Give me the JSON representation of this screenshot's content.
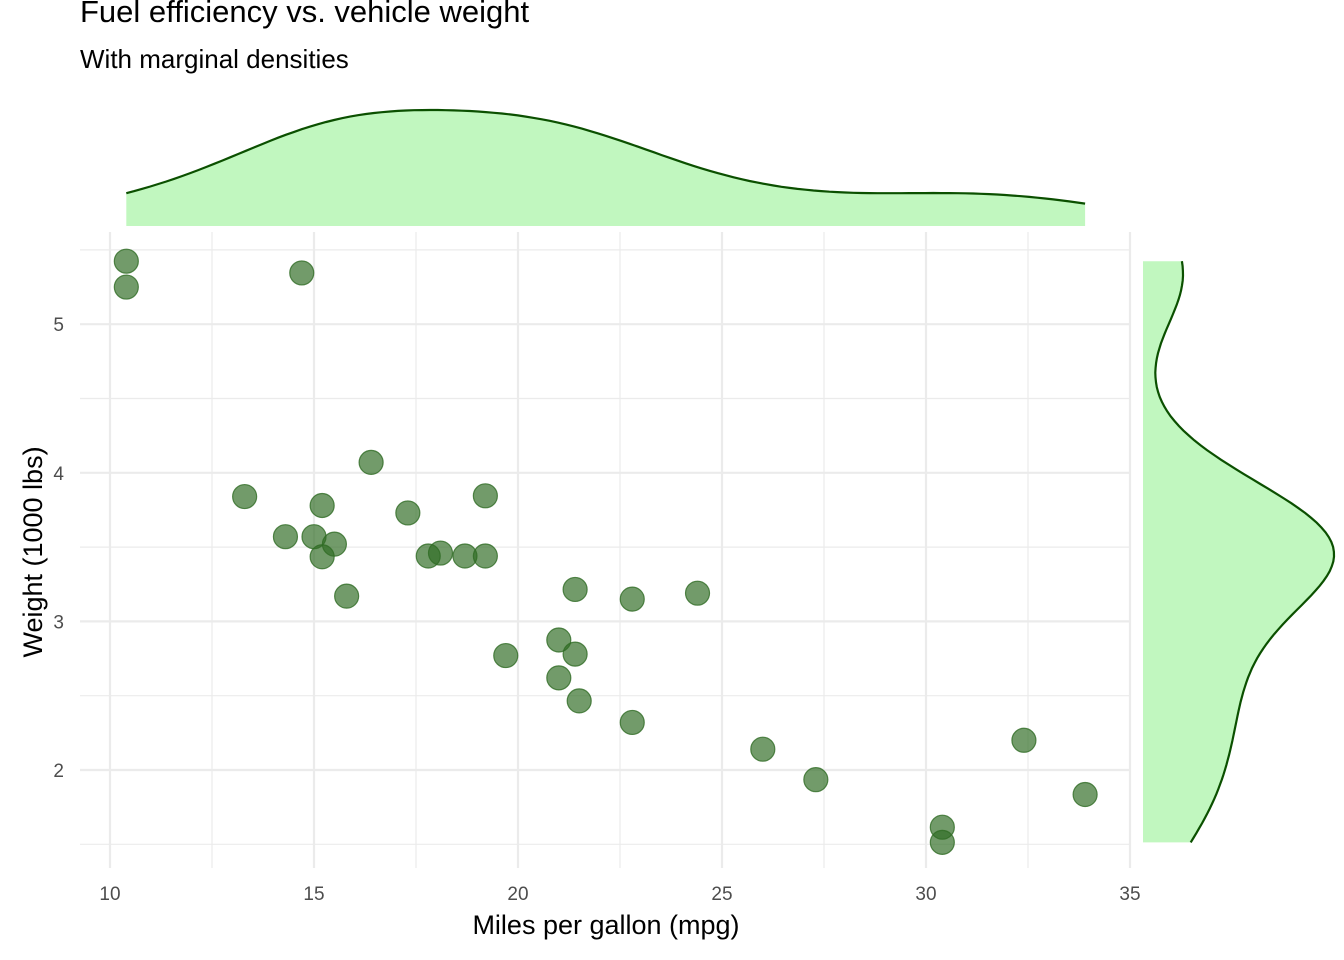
{
  "chart_data": {
    "type": "scatter",
    "title": "Fuel efficiency vs. vehicle weight",
    "subtitle": "With marginal densities",
    "xlabel": "Miles per gallon (mpg)",
    "ylabel": "Weight (1000 lbs)",
    "xlim": [
      9.25,
      35
    ],
    "ylim": [
      1.33,
      5.63
    ],
    "x_ticks": [
      10,
      15,
      20,
      25,
      30,
      35
    ],
    "y_ticks": [
      2,
      3,
      4,
      5
    ],
    "grid": true,
    "marginal_densities": [
      "top: mpg",
      "right: weight"
    ],
    "point_color": "#2f6b24",
    "density_fill": "#c1f7bf",
    "density_line": "#0b5000",
    "points": [
      {
        "x": 21.0,
        "y": 2.62
      },
      {
        "x": 21.0,
        "y": 2.875
      },
      {
        "x": 22.8,
        "y": 2.32
      },
      {
        "x": 21.4,
        "y": 3.215
      },
      {
        "x": 18.7,
        "y": 3.44
      },
      {
        "x": 18.1,
        "y": 3.46
      },
      {
        "x": 14.3,
        "y": 3.57
      },
      {
        "x": 24.4,
        "y": 3.19
      },
      {
        "x": 22.8,
        "y": 3.15
      },
      {
        "x": 19.2,
        "y": 3.44
      },
      {
        "x": 17.8,
        "y": 3.44
      },
      {
        "x": 16.4,
        "y": 4.07
      },
      {
        "x": 17.3,
        "y": 3.73
      },
      {
        "x": 15.2,
        "y": 3.78
      },
      {
        "x": 10.4,
        "y": 5.25
      },
      {
        "x": 10.4,
        "y": 5.424
      },
      {
        "x": 14.7,
        "y": 5.345
      },
      {
        "x": 32.4,
        "y": 2.2
      },
      {
        "x": 30.4,
        "y": 1.615
      },
      {
        "x": 33.9,
        "y": 1.835
      },
      {
        "x": 21.5,
        "y": 2.465
      },
      {
        "x": 15.5,
        "y": 3.52
      },
      {
        "x": 15.2,
        "y": 3.435
      },
      {
        "x": 13.3,
        "y": 3.84
      },
      {
        "x": 19.2,
        "y": 3.845
      },
      {
        "x": 27.3,
        "y": 1.935
      },
      {
        "x": 26.0,
        "y": 2.14
      },
      {
        "x": 30.4,
        "y": 1.513
      },
      {
        "x": 15.8,
        "y": 3.17
      },
      {
        "x": 19.7,
        "y": 2.77
      },
      {
        "x": 15.0,
        "y": 3.57
      },
      {
        "x": 21.4,
        "y": 2.78
      }
    ]
  }
}
